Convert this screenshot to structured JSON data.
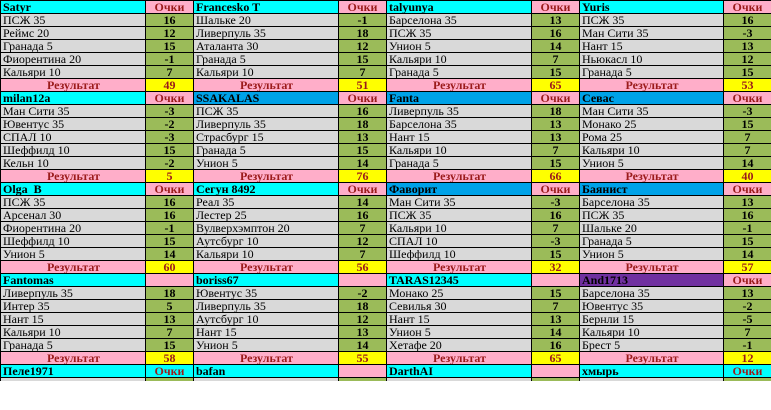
{
  "colors": {
    "cyan": "#00FFFF",
    "blue": "#00A2E8",
    "purple": "#7030A0",
    "pink": "#FFAEC9",
    "yellow": "#FFFF00",
    "green": "#9BBB59",
    "gray": "#D9D9D9",
    "dark_red": "#9B1B1B",
    "border": "#000000"
  },
  "board": {
    "points_header_label": "Очки",
    "result_label": "Результат",
    "blocks": [
      {
        "name": "Satyr",
        "header_bg": "cyan",
        "points_cell": "label-pink",
        "result": 49,
        "rows": [
          {
            "team": "ПСЖ 35",
            "points": 16
          },
          {
            "team": "Реймс 20",
            "points": 12
          },
          {
            "team": "Гранада 5",
            "points": 15
          },
          {
            "team": "Фиорентина 20",
            "points": -1
          },
          {
            "team": "Кальяри 10",
            "points": 7
          }
        ]
      },
      {
        "name": "Francesko T",
        "header_bg": "cyan",
        "points_cell": "label-pink",
        "result": 51,
        "rows": [
          {
            "team": "Шальке 20",
            "points": -1
          },
          {
            "team": "Ливерпуль 35",
            "points": 18
          },
          {
            "team": "Аталанта 30",
            "points": 12
          },
          {
            "team": "Гранада 5",
            "points": 15
          },
          {
            "team": "Кальяри 10",
            "points": 7
          }
        ]
      },
      {
        "name": "talyunya",
        "header_bg": "cyan",
        "points_cell": "label-pink",
        "result": 65,
        "rows": [
          {
            "team": "Барселона 35",
            "points": 13
          },
          {
            "team": "ПСЖ 35",
            "points": 16
          },
          {
            "team": "Унион 5",
            "points": 14
          },
          {
            "team": "Кальяри 10",
            "points": 7
          },
          {
            "team": "Гранада 5",
            "points": 15
          }
        ]
      },
      {
        "name": "Yuris",
        "header_bg": "cyan",
        "points_cell": "label-pink",
        "result": 53,
        "rows": [
          {
            "team": "ПСЖ 35",
            "points": 16
          },
          {
            "team": "Ман Сити 35",
            "points": -3
          },
          {
            "team": "Нант 15",
            "points": 13
          },
          {
            "team": "Ньюкасл 10",
            "points": 12
          },
          {
            "team": "Гранада 5",
            "points": 15
          }
        ]
      },
      {
        "name": "milan12a",
        "header_bg": "cyan",
        "points_cell": "label-pink",
        "result": 5,
        "rows": [
          {
            "team": "Ман Сити 35",
            "points": -3
          },
          {
            "team": "Ювентус 35",
            "points": -2
          },
          {
            "team": "СПАЛ 10",
            "points": -3
          },
          {
            "team": "Шеффилд 10",
            "points": 15
          },
          {
            "team": "Кельн 10",
            "points": -2
          }
        ]
      },
      {
        "name": "SSAKALAS",
        "header_bg": "blue",
        "points_cell": "label-pink",
        "result": 76,
        "rows": [
          {
            "team": "ПСЖ 35",
            "points": 16
          },
          {
            "team": "Ливерпуль 35",
            "points": 18
          },
          {
            "team": "Страсбург 15",
            "points": 13
          },
          {
            "team": "Гранада 5",
            "points": 15
          },
          {
            "team": "Унион 5",
            "points": 14
          }
        ]
      },
      {
        "name": "Fanta",
        "header_bg": "blue",
        "points_cell": "label-pink",
        "result": 66,
        "rows": [
          {
            "team": "Ливерпуль 35",
            "points": 18
          },
          {
            "team": "Барселона 35",
            "points": 13
          },
          {
            "team": "Нант 15",
            "points": 13
          },
          {
            "team": "Кальяри 10",
            "points": 7
          },
          {
            "team": "Гранада 5",
            "points": 15
          }
        ]
      },
      {
        "name": "Севас",
        "header_bg": "blue",
        "points_cell": "label-pink",
        "result": 40,
        "rows": [
          {
            "team": "Ман Сити 35",
            "points": -3
          },
          {
            "team": "Монако 25",
            "points": 15
          },
          {
            "team": "Рома 25",
            "points": 7
          },
          {
            "team": "Кальяри 10",
            "points": 7
          },
          {
            "team": "Унион 5",
            "points": 14
          }
        ]
      },
      {
        "name": "Olga  B",
        "header_bg": "cyan",
        "points_cell": "label-pink",
        "result": 60,
        "rows": [
          {
            "team": "ПСЖ 35",
            "points": 16
          },
          {
            "team": "Арсенал 30",
            "points": 16
          },
          {
            "team": "Фиорентина 20",
            "points": -1
          },
          {
            "team": "Шеффилд 10",
            "points": 15
          },
          {
            "team": "Унион 5",
            "points": 14
          }
        ]
      },
      {
        "name": "Сегун 8492",
        "header_bg": "cyan",
        "points_cell": "label-pink",
        "result": 56,
        "rows": [
          {
            "team": "Реал 35",
            "points": 14
          },
          {
            "team": "Лестер 25",
            "points": 16
          },
          {
            "team": "Вулверхэмптон 20",
            "points": 7
          },
          {
            "team": "Аутсбург 10",
            "points": 12
          },
          {
            "team": "Кальяри 10",
            "points": 7
          }
        ]
      },
      {
        "name": "Фаворит",
        "header_bg": "blue",
        "points_cell": "label-pink",
        "result": 32,
        "rows": [
          {
            "team": "Ман Сити 35",
            "points": -3
          },
          {
            "team": "ПСЖ 35",
            "points": 16
          },
          {
            "team": "Кальяри 10",
            "points": 7
          },
          {
            "team": "СПАЛ 10",
            "points": -3
          },
          {
            "team": "Шеффилд 10",
            "points": 15
          }
        ]
      },
      {
        "name": "Баянист",
        "header_bg": "blue",
        "points_cell": "label-pink",
        "result": 57,
        "rows": [
          {
            "team": "Барселона 35",
            "points": 13
          },
          {
            "team": "ПСЖ 35",
            "points": 16
          },
          {
            "team": "Шальке 20",
            "points": -1
          },
          {
            "team": "Гранада 5",
            "points": 15
          },
          {
            "team": "Унион 5",
            "points": 14
          }
        ]
      },
      {
        "name": "Fantomas",
        "header_bg": "cyan",
        "points_cell": "empty-pink",
        "result": 58,
        "rows": [
          {
            "team": "Ливерпуль 35",
            "points": 18
          },
          {
            "team": "Интер 35",
            "points": 5
          },
          {
            "team": "Нант 15",
            "points": 13
          },
          {
            "team": "Кальяри 10",
            "points": 7
          },
          {
            "team": "Гранада 5",
            "points": 15
          }
        ]
      },
      {
        "name": "boriss67",
        "header_bg": "cyan",
        "points_cell": "empty-pink",
        "result": 55,
        "rows": [
          {
            "team": "Ювентус 35",
            "points": -2
          },
          {
            "team": "Ливерпуль 35",
            "points": 18
          },
          {
            "team": "Аутсбург 10",
            "points": 12
          },
          {
            "team": "Нант 15",
            "points": 13
          },
          {
            "team": "Унион 5",
            "points": 14
          }
        ]
      },
      {
        "name": "TARAS12345",
        "header_bg": "cyan",
        "points_cell": "empty-pink",
        "result": 65,
        "rows": [
          {
            "team": "Монако 25",
            "points": 15
          },
          {
            "team": "Севилья 30",
            "points": 7
          },
          {
            "team": "Нант 15",
            "points": 13
          },
          {
            "team": "Унион 5",
            "points": 14
          },
          {
            "team": "Хетафе 20",
            "points": 16
          }
        ]
      },
      {
        "name": "And1713",
        "header_bg": "purple",
        "points_cell": "label-pink",
        "result": 12,
        "rows": [
          {
            "team": "Барселона 35",
            "points": 13
          },
          {
            "team": "Ювентус 35",
            "points": -2
          },
          {
            "team": "Бернли 15",
            "points": -5
          },
          {
            "team": "Кальяри 10",
            "points": 7
          },
          {
            "team": "Брест 5",
            "points": -1
          }
        ]
      }
    ],
    "footer": [
      {
        "name": "Пеле1971",
        "header_bg": "cyan",
        "points_cell": "label-cyan"
      },
      {
        "name": "bafan",
        "header_bg": "cyan",
        "points_cell": "empty-pink"
      },
      {
        "name": "DarthAI",
        "header_bg": "cyan",
        "points_cell": "empty-pink"
      },
      {
        "name": "хмырь",
        "header_bg": "cyan",
        "points_cell": "label-cyan"
      }
    ]
  }
}
